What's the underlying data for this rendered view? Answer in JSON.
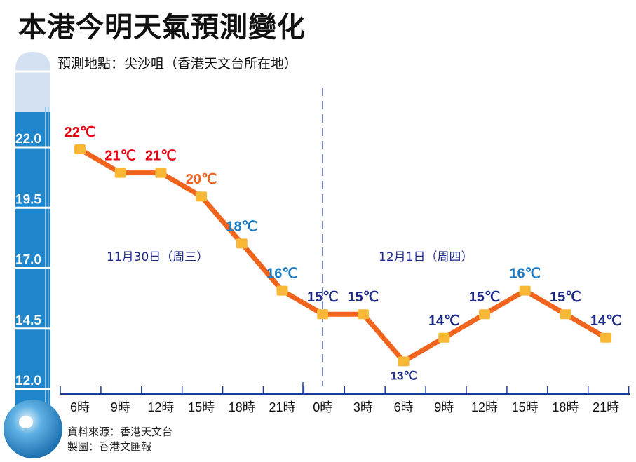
{
  "title": "本港今明天氣預測變化",
  "location_label": "預測地點：尖沙咀（香港天文台所在地）",
  "credits": [
    "資料來源：香港天文台",
    "製圖：香港文匯報"
  ],
  "colors": {
    "line": "#f0641e",
    "marker": "#f8b836",
    "axis": "#1e3a96",
    "thermo": "#1f86cc"
  },
  "chart_data": {
    "type": "line",
    "title": "本港今明天氣預測變化",
    "xlabel": "",
    "ylabel": "",
    "thermometer_ticks": [
      "22.0",
      "19.5",
      "17.0",
      "14.5",
      "12.0"
    ],
    "day_labels": [
      "11月30日（周三）",
      "12月1日（周四）"
    ],
    "categories": [
      "6時",
      "9時",
      "12時",
      "15時",
      "18時",
      "21時",
      "0時",
      "3時",
      "6時",
      "9時",
      "12時",
      "15時",
      "18時",
      "21時"
    ],
    "values": [
      22,
      21,
      21,
      20,
      18,
      16,
      15,
      15,
      13,
      14,
      15,
      16,
      15,
      14
    ],
    "value_labels": [
      "22℃",
      "21℃",
      "21℃",
      "20℃",
      "18℃",
      "16℃",
      "15℃",
      "15℃",
      "13℃",
      "14℃",
      "15℃",
      "16℃",
      "15℃",
      "14℃"
    ],
    "label_colors": [
      "#e60012",
      "#e60012",
      "#e60012",
      "#f0641e",
      "#1a7cc4",
      "#1a7cc4",
      "#1e2a8a",
      "#1e2a8a",
      "#1e2a8a",
      "#1e2a8a",
      "#1e2a8a",
      "#1a7cc4",
      "#1e2a8a",
      "#1e2a8a"
    ],
    "ylim": [
      12,
      22
    ]
  }
}
